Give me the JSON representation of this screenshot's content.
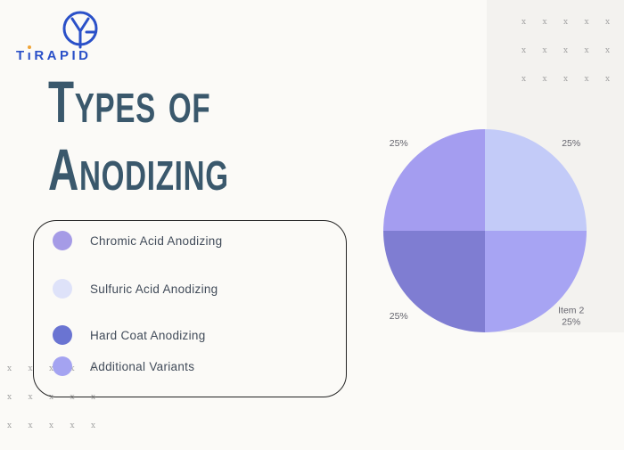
{
  "brand": {
    "logo_text": "TiRAPID",
    "text_parts": {
      "t": "T",
      "i_dotless": "ı",
      "rest": "RAPID"
    },
    "logo_color": "#2A50C8",
    "dot_color": "#F0A437"
  },
  "title": {
    "line1": "Types of",
    "line2": "Anodizing",
    "color": "#3A586C"
  },
  "legend": {
    "items": [
      {
        "label": "Chromic Acid Anodizing",
        "color": "#A59BE6"
      },
      {
        "label": "Sulfuric Acid Anodizing",
        "color": "#DEE2F9"
      },
      {
        "label": "Hard Coat Anodizing",
        "color": "#6A74D2"
      },
      {
        "label": "Additional Variants",
        "color": "#A4A3F1"
      }
    ]
  },
  "chart_data": {
    "type": "pie",
    "title": "Types of Anodizing",
    "start": "top",
    "direction": "clockwise",
    "label_color": "#63636C",
    "slices": [
      {
        "position": "top-right",
        "value": 25,
        "pct_label": "25%",
        "name_label": "",
        "color": "#C3CBF8"
      },
      {
        "position": "bottom-right",
        "value": 25,
        "pct_label": "25%",
        "name_label": "Item 2",
        "color": "#A7A4F3"
      },
      {
        "position": "bottom-left",
        "value": 25,
        "pct_label": "25%",
        "name_label": "",
        "color": "#7F7DD2"
      },
      {
        "position": "top-left",
        "value": 25,
        "pct_label": "25%",
        "name_label": "",
        "color": "#A49DF0"
      }
    ]
  },
  "decor": {
    "mark": "x",
    "color": "#A5A5A5",
    "grid_cols": 5,
    "grid_rows": 3
  }
}
